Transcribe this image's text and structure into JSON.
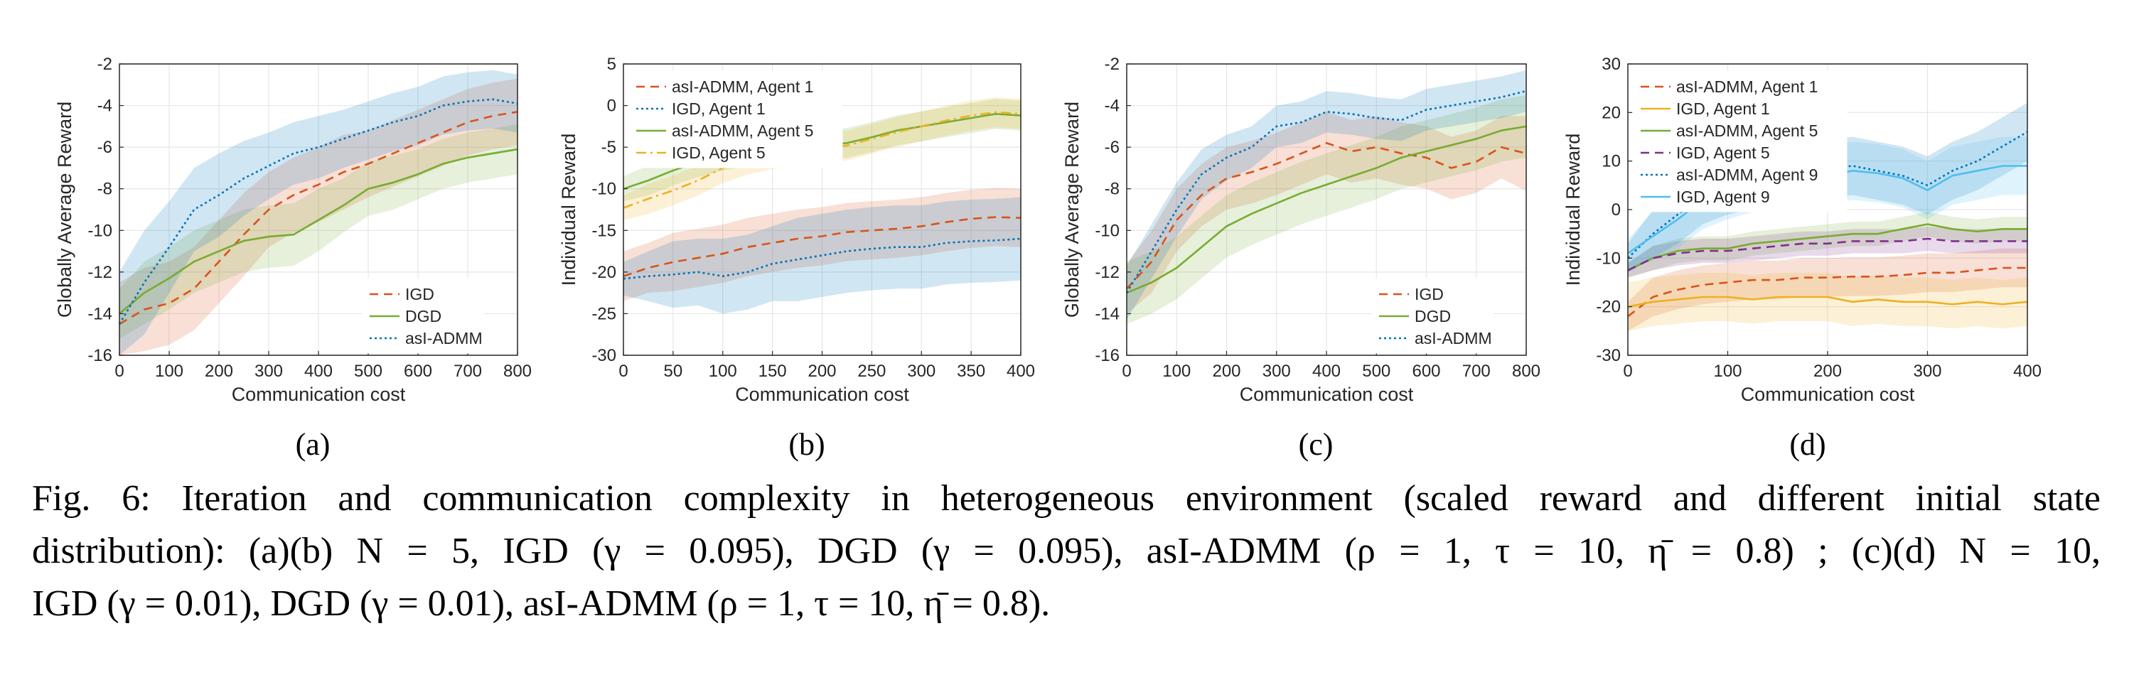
{
  "chart_data": [
    {
      "type": "line",
      "panel": "(a)",
      "xlabel": "Communication cost",
      "ylabel": "Globally Average Reward",
      "xlim": [
        0,
        800
      ],
      "ylim": [
        -16,
        -2
      ],
      "xticks": [
        0,
        100,
        200,
        300,
        400,
        500,
        600,
        700,
        800
      ],
      "yticks": [
        -16,
        -14,
        -12,
        -10,
        -8,
        -6,
        -4,
        -2
      ],
      "grid": true,
      "legend_position": "bottom-right",
      "x": [
        0,
        50,
        100,
        150,
        200,
        250,
        300,
        350,
        400,
        450,
        500,
        550,
        600,
        650,
        700,
        750,
        800
      ],
      "series": [
        {
          "name": "IGD",
          "style": "dashed",
          "color": "#d95319",
          "values": [
            -14.5,
            -13.8,
            -13.5,
            -12.8,
            -11.5,
            -10.2,
            -9.0,
            -8.3,
            -7.8,
            -7.2,
            -6.8,
            -6.3,
            -5.8,
            -5.3,
            -4.8,
            -4.5,
            -4.3
          ],
          "band": [
            2.0,
            2.0,
            2.0,
            2.0,
            2.0,
            2.0,
            1.8,
            1.8,
            1.8,
            1.8,
            1.6,
            1.6,
            1.6,
            1.6,
            1.6,
            1.6,
            1.6
          ]
        },
        {
          "name": "DGD",
          "style": "solid",
          "color": "#77ac30",
          "values": [
            -14.0,
            -13.0,
            -12.3,
            -11.5,
            -11.0,
            -10.5,
            -10.3,
            -10.2,
            -9.5,
            -8.8,
            -8.0,
            -7.7,
            -7.3,
            -6.8,
            -6.5,
            -6.3,
            -6.1
          ],
          "band": [
            1.2,
            1.5,
            1.5,
            1.5,
            1.5,
            1.5,
            1.5,
            1.5,
            1.5,
            1.3,
            1.3,
            1.3,
            1.2,
            1.2,
            1.2,
            1.2,
            1.2
          ]
        },
        {
          "name": "asI-ADMM",
          "style": "dotted",
          "color": "#0072bd",
          "values": [
            -14.5,
            -12.5,
            -10.8,
            -9.0,
            -8.3,
            -7.5,
            -6.9,
            -6.3,
            -6.0,
            -5.6,
            -5.2,
            -4.8,
            -4.5,
            -4.0,
            -3.8,
            -3.7,
            -3.9
          ],
          "band": [
            2.5,
            2.5,
            2.2,
            2.0,
            2.0,
            1.8,
            1.6,
            1.5,
            1.5,
            1.4,
            1.4,
            1.4,
            1.4,
            1.4,
            1.4,
            1.4,
            1.4
          ]
        }
      ]
    },
    {
      "type": "line",
      "panel": "(b)",
      "xlabel": "Communication cost",
      "ylabel": "Individual Reward",
      "xlim": [
        0,
        400
      ],
      "ylim": [
        -30,
        5
      ],
      "xticks": [
        0,
        50,
        100,
        150,
        200,
        250,
        300,
        350,
        400
      ],
      "yticks": [
        -30,
        -25,
        -20,
        -15,
        -10,
        -5,
        0,
        5
      ],
      "grid": true,
      "legend_position": "top-left",
      "x": [
        0,
        25,
        50,
        75,
        100,
        125,
        150,
        175,
        200,
        225,
        250,
        275,
        300,
        325,
        350,
        375,
        400
      ],
      "series": [
        {
          "name": "asI-ADMM, Agent 1",
          "style": "dashed",
          "color": "#d95319",
          "values": [
            -20.5,
            -19.5,
            -18.8,
            -18.3,
            -17.8,
            -17.0,
            -16.5,
            -16.0,
            -15.7,
            -15.2,
            -15.0,
            -14.8,
            -14.5,
            -14.0,
            -13.6,
            -13.4,
            -13.5
          ],
          "band": [
            3,
            3,
            3.5,
            3.5,
            3.5,
            3.5,
            3.5,
            3.5,
            3.5,
            3.5,
            3.5,
            3.5,
            3.5,
            3.5,
            3.5,
            3.5,
            3.5
          ]
        },
        {
          "name": "IGD, Agent 1",
          "style": "dotted",
          "color": "#0072bd",
          "values": [
            -20.8,
            -20.5,
            -20.3,
            -20.0,
            -20.5,
            -20.0,
            -19.0,
            -18.5,
            -18.0,
            -17.5,
            -17.2,
            -17.0,
            -17.0,
            -16.5,
            -16.3,
            -16.2,
            -16.0
          ],
          "band": [
            2,
            3,
            4,
            4,
            4.5,
            4.5,
            4.5,
            5,
            5,
            5,
            5,
            5,
            5,
            5,
            5,
            5,
            5
          ]
        },
        {
          "name": "asI-ADMM, Agent 5",
          "style": "solid",
          "color": "#77ac30",
          "values": [
            -10.0,
            -9.0,
            -7.8,
            -6.8,
            -6.0,
            -5.5,
            -5.2,
            -5.0,
            -4.8,
            -4.5,
            -3.8,
            -3.0,
            -2.5,
            -2.0,
            -1.5,
            -1.0,
            -1.2
          ],
          "band": [
            1.5,
            1.8,
            1.8,
            1.8,
            1.8,
            1.8,
            1.8,
            1.8,
            1.8,
            1.8,
            1.8,
            1.8,
            1.8,
            1.8,
            1.8,
            1.8,
            1.8
          ]
        },
        {
          "name": "IGD, Agent 5",
          "style": "dashdot",
          "color": "#edb120",
          "values": [
            -12.3,
            -11.2,
            -10.2,
            -9.0,
            -7.5,
            -6.5,
            -5.8,
            -5.5,
            -5.2,
            -4.8,
            -4.0,
            -3.2,
            -2.5,
            -1.8,
            -1.2,
            -0.8,
            -1.0
          ],
          "band": [
            1.5,
            1.8,
            1.8,
            1.8,
            1.8,
            1.8,
            1.8,
            1.8,
            1.8,
            1.8,
            1.8,
            1.8,
            1.8,
            1.8,
            1.8,
            1.8,
            1.8
          ]
        }
      ]
    },
    {
      "type": "line",
      "panel": "(c)",
      "xlabel": "Communication cost",
      "ylabel": "Globally Average Reward",
      "xlim": [
        0,
        800
      ],
      "ylim": [
        -16,
        -2
      ],
      "xticks": [
        0,
        100,
        200,
        300,
        400,
        500,
        600,
        700,
        800
      ],
      "yticks": [
        -16,
        -14,
        -12,
        -10,
        -8,
        -6,
        -4,
        -2
      ],
      "grid": true,
      "legend_position": "bottom-right",
      "x": [
        0,
        50,
        100,
        150,
        200,
        250,
        300,
        350,
        400,
        450,
        500,
        550,
        600,
        650,
        700,
        750,
        800
      ],
      "series": [
        {
          "name": "IGD",
          "style": "dashed",
          "color": "#d95319",
          "values": [
            -12.8,
            -11.5,
            -9.5,
            -8.3,
            -7.5,
            -7.2,
            -6.8,
            -6.3,
            -5.8,
            -6.2,
            -6.0,
            -6.3,
            -6.5,
            -7.0,
            -6.7,
            -6.0,
            -6.3
          ],
          "band": [
            1.2,
            1.5,
            1.5,
            1.5,
            1.5,
            1.5,
            1.5,
            1.5,
            1.5,
            1.5,
            1.5,
            1.5,
            1.5,
            1.5,
            1.5,
            1.5,
            1.8
          ]
        },
        {
          "name": "DGD",
          "style": "solid",
          "color": "#77ac30",
          "values": [
            -13.0,
            -12.5,
            -11.8,
            -10.8,
            -9.8,
            -9.2,
            -8.7,
            -8.2,
            -7.8,
            -7.4,
            -7.0,
            -6.5,
            -6.2,
            -5.9,
            -5.6,
            -5.2,
            -5.0
          ],
          "band": [
            1.5,
            1.5,
            1.5,
            1.5,
            1.5,
            1.5,
            1.5,
            1.5,
            1.5,
            1.5,
            1.5,
            1.5,
            1.5,
            1.5,
            1.5,
            1.5,
            1.5
          ]
        },
        {
          "name": "asI-ADMM",
          "style": "dotted",
          "color": "#0072bd",
          "values": [
            -13.0,
            -11.0,
            -9.0,
            -7.3,
            -6.5,
            -6.0,
            -5.0,
            -4.8,
            -4.3,
            -4.4,
            -4.6,
            -4.7,
            -4.2,
            -4.0,
            -3.8,
            -3.6,
            -3.3
          ],
          "band": [
            1.3,
            1.3,
            1.3,
            1.2,
            1.1,
            1.0,
            1.0,
            1.0,
            1.0,
            1.0,
            1.0,
            1.0,
            1.0,
            1.0,
            1.0,
            1.0,
            1.0
          ]
        }
      ]
    },
    {
      "type": "line",
      "panel": "(d)",
      "xlabel": "Communication cost",
      "ylabel": "Individual Reward",
      "xlim": [
        0,
        400
      ],
      "ylim": [
        -30,
        30
      ],
      "xticks": [
        0,
        100,
        200,
        300,
        400
      ],
      "yticks": [
        -30,
        -20,
        -10,
        0,
        10,
        20,
        30
      ],
      "grid": true,
      "legend_position": "top-left",
      "x": [
        0,
        25,
        50,
        75,
        100,
        125,
        150,
        175,
        200,
        225,
        250,
        275,
        300,
        325,
        350,
        375,
        400
      ],
      "series": [
        {
          "name": "asI-ADMM, Agent 1",
          "style": "dashed",
          "color": "#d95319",
          "values": [
            -22.0,
            -18.0,
            -16.5,
            -15.5,
            -15.0,
            -14.5,
            -14.5,
            -14.0,
            -14.0,
            -13.8,
            -13.8,
            -13.5,
            -13.0,
            -13.0,
            -12.5,
            -12.0,
            -12.0
          ],
          "band": [
            3,
            4,
            4,
            4,
            4,
            4,
            4,
            4,
            4,
            4,
            4,
            4,
            4,
            4,
            4,
            4,
            4
          ]
        },
        {
          "name": "IGD, Agent 1",
          "style": "solid",
          "color": "#edb120",
          "values": [
            -20.0,
            -19.0,
            -18.5,
            -18.0,
            -18.0,
            -18.5,
            -18.0,
            -18.0,
            -18.0,
            -19.0,
            -18.5,
            -19.0,
            -19.0,
            -19.5,
            -19.0,
            -19.5,
            -19.0
          ],
          "band": [
            5,
            5,
            5,
            5,
            5,
            5,
            5,
            5,
            5,
            5,
            5,
            5,
            5,
            5,
            5,
            5,
            5
          ]
        },
        {
          "name": "asI-ADMM, Agent 5",
          "style": "solid",
          "color": "#77ac30",
          "values": [
            -12.5,
            -10.0,
            -8.5,
            -8.0,
            -8.0,
            -7.0,
            -6.5,
            -6.0,
            -5.5,
            -5.0,
            -5.0,
            -4.0,
            -3.0,
            -4.0,
            -4.5,
            -4.0,
            -4.0
          ],
          "band": [
            1.5,
            2.5,
            2.5,
            2.5,
            2.5,
            2.5,
            2.5,
            2.5,
            2.5,
            2.5,
            2.5,
            2.5,
            2.5,
            2.5,
            2.5,
            2.5,
            2.5
          ]
        },
        {
          "name": "IGD, Agent 5",
          "style": "dashed",
          "color": "#7e2f8e",
          "values": [
            -12.5,
            -10.0,
            -9.0,
            -8.5,
            -8.5,
            -8.0,
            -7.5,
            -7.0,
            -7.0,
            -6.5,
            -6.5,
            -6.5,
            -6.0,
            -6.5,
            -6.5,
            -6.5,
            -6.5
          ],
          "band": [
            1.5,
            2.5,
            2.5,
            2.5,
            2.5,
            2.5,
            2.5,
            2.5,
            2.5,
            2.5,
            2.5,
            2.5,
            2.5,
            2.5,
            2.5,
            2.5,
            2.5
          ]
        },
        {
          "name": "asI-ADMM, Agent 9",
          "style": "dotted",
          "color": "#0072bd",
          "values": [
            -10.0,
            -5.0,
            -1.0,
            3.0,
            5.0,
            6.0,
            8.0,
            9.0,
            8.5,
            9.0,
            8.0,
            7.0,
            5.0,
            8.0,
            10.0,
            13.0,
            16.0
          ],
          "band": [
            3,
            5,
            6,
            6,
            6,
            6,
            6,
            6,
            6,
            6,
            6,
            6,
            6,
            6,
            6,
            6,
            6
          ]
        },
        {
          "name": "IGD, Agent 9",
          "style": "solid",
          "color": "#4dbeee",
          "values": [
            -9.0,
            -5.5,
            -2.0,
            2.0,
            4.0,
            5.5,
            7.0,
            8.0,
            7.0,
            8.0,
            7.5,
            6.5,
            4.0,
            7.0,
            8.0,
            9.0,
            9.0
          ],
          "band": [
            3,
            5,
            6,
            6,
            6,
            6,
            6,
            6,
            6,
            6,
            6,
            6,
            6,
            6,
            6,
            6,
            6
          ]
        }
      ]
    }
  ],
  "subfigure_labels": [
    "(a)",
    "(b)",
    "(c)",
    "(d)"
  ],
  "caption": {
    "line1": "Fig. 6: Iteration and communication complexity in heterogeneous environment (scaled reward and different initial state",
    "line2": "distribution): (a)(b) N = 5, IGD (γ = 0.095), DGD (γ = 0.095), asI-ADMM (ρ = 1, τ = 10, η̄ = 0.8) ; (c)(d) N = 10,",
    "line3": "IGD (γ = 0.01), DGD (γ = 0.01), asI-ADMM (ρ = 1, τ = 10, η̄ = 0.8)."
  }
}
